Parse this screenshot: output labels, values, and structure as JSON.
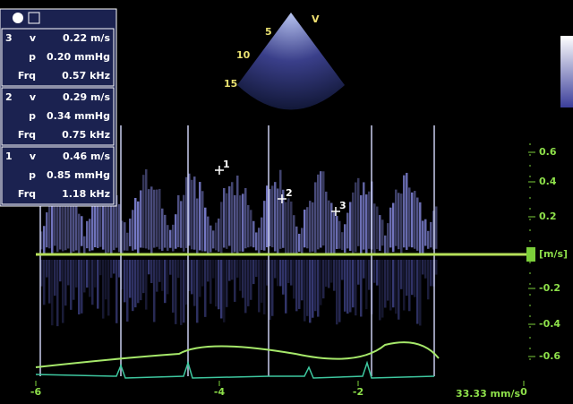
{
  "measurements": [
    {
      "index": "3",
      "rows": [
        {
          "label": "v",
          "value": "0.22 m/s"
        },
        {
          "label": "p",
          "value": "0.20 mmHg"
        },
        {
          "label": "Frq",
          "value": "0.57 kHz"
        }
      ]
    },
    {
      "index": "2",
      "rows": [
        {
          "label": "v",
          "value": "0.29 m/s"
        },
        {
          "label": "p",
          "value": "0.34 mmHg"
        },
        {
          "label": "Frq",
          "value": "0.75 kHz"
        }
      ]
    },
    {
      "index": "1",
      "rows": [
        {
          "label": "v",
          "value": "0.46 m/s"
        },
        {
          "label": "p",
          "value": "0.85 mmHg"
        },
        {
          "label": "Frq",
          "value": "1.18 kHz"
        }
      ]
    }
  ],
  "sector": {
    "apex_label": "V",
    "depth_marks": [
      "5",
      "10",
      "15"
    ]
  },
  "velocity_scale": {
    "unit": "[m/s]",
    "ticks": [
      "0.6",
      "0.4",
      "0.2",
      "-0.2",
      "-0.4",
      "-0.6"
    ]
  },
  "time_scale": {
    "ticks": [
      "-6",
      "-4",
      "-2",
      "0"
    ],
    "speed": "33.33 mm/s"
  },
  "markers": [
    "1",
    "2",
    "3"
  ]
}
